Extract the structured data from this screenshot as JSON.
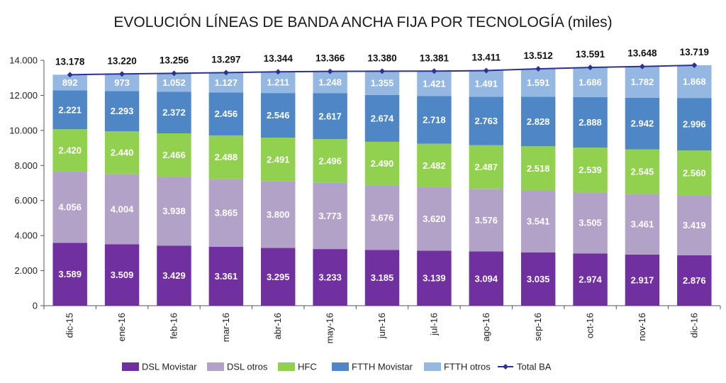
{
  "chart_data": {
    "type": "bar",
    "stacked": true,
    "title": "EVOLUCIÓN LÍNEAS DE BANDA ANCHA FIJA POR TECNOLOGÍA (miles)",
    "categories": [
      "dic-15",
      "ene-16",
      "feb-16",
      "mar-16",
      "abr-16",
      "may-16",
      "jun-16",
      "jul-16",
      "ago-16",
      "sep-16",
      "oct-16",
      "nov-16",
      "dic-16"
    ],
    "ylim": [
      0,
      14000
    ],
    "yticks": [
      0,
      2000,
      4000,
      6000,
      8000,
      10000,
      12000,
      14000
    ],
    "ytick_labels": [
      "0",
      "2.000",
      "4.000",
      "6.000",
      "8.000",
      "10.000",
      "12.000",
      "14.000"
    ],
    "legend_position": "bottom",
    "series": [
      {
        "name": "DSL Movistar",
        "color": "#7030a0",
        "values": [
          3589,
          3509,
          3429,
          3361,
          3295,
          3233,
          3185,
          3139,
          3094,
          3035,
          2974,
          2917,
          2876
        ],
        "labels": [
          "3.589",
          "3.509",
          "3.429",
          "3.361",
          "3.295",
          "3.233",
          "3.185",
          "3.139",
          "3.094",
          "3.035",
          "2.974",
          "2.917",
          "2.876"
        ]
      },
      {
        "name": "DSL otros",
        "color": "#b3a2c7",
        "values": [
          4056,
          4004,
          3938,
          3865,
          3800,
          3773,
          3676,
          3620,
          3576,
          3541,
          3505,
          3461,
          3419
        ],
        "labels": [
          "4.056",
          "4.004",
          "3.938",
          "3.865",
          "3.800",
          "3.773",
          "3.676",
          "3.620",
          "3.576",
          "3.541",
          "3.505",
          "3.461",
          "3.419"
        ]
      },
      {
        "name": "HFC",
        "color": "#92d050",
        "values": [
          2420,
          2440,
          2466,
          2488,
          2491,
          2496,
          2490,
          2482,
          2487,
          2518,
          2539,
          2545,
          2560
        ],
        "labels": [
          "2.420",
          "2.440",
          "2.466",
          "2.488",
          "2.491",
          "2.496",
          "2.490",
          "2.482",
          "2.487",
          "2.518",
          "2.539",
          "2.545",
          "2.560"
        ]
      },
      {
        "name": "FTTH Movistar",
        "color": "#4f86c6",
        "values": [
          2221,
          2293,
          2372,
          2456,
          2546,
          2617,
          2674,
          2718,
          2763,
          2828,
          2888,
          2942,
          2996
        ],
        "labels": [
          "2.221",
          "2.293",
          "2.372",
          "2.456",
          "2.546",
          "2.617",
          "2.674",
          "2.718",
          "2.763",
          "2.828",
          "2.888",
          "2.942",
          "2.996"
        ]
      },
      {
        "name": "FTTH otros",
        "color": "#95b8e3",
        "values": [
          892,
          973,
          1052,
          1127,
          1211,
          1248,
          1355,
          1421,
          1491,
          1591,
          1686,
          1782,
          1868
        ],
        "labels": [
          "892",
          "973",
          "1.052",
          "1.127",
          "1.211",
          "1.248",
          "1.355",
          "1.421",
          "1.491",
          "1.591",
          "1.686",
          "1.782",
          "1.868"
        ]
      }
    ],
    "total": {
      "name": "Total BA",
      "type": "line",
      "color": "#2e3192",
      "values": [
        13178,
        13220,
        13256,
        13297,
        13344,
        13366,
        13380,
        13381,
        13411,
        13512,
        13591,
        13648,
        13719
      ],
      "labels": [
        "13.178",
        "13.220",
        "13.256",
        "13.297",
        "13.344",
        "13.366",
        "13.380",
        "13.381",
        "13.411",
        "13.512",
        "13.591",
        "13.648",
        "13.719"
      ]
    }
  }
}
